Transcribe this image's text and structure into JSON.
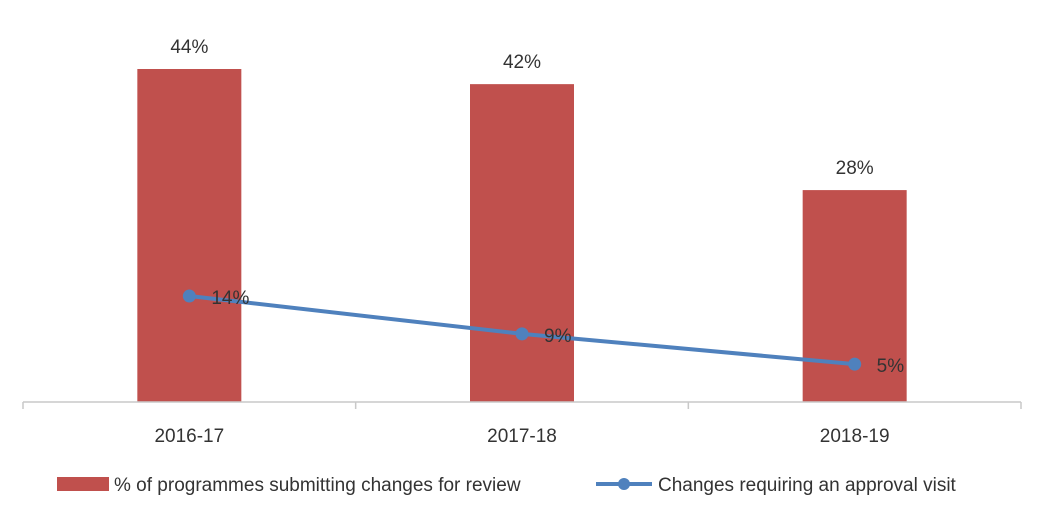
{
  "chart_data": {
    "type": "bar",
    "categories": [
      "2016-17",
      "2017-18",
      "2018-19"
    ],
    "series": [
      {
        "name": "% of programmes submitting changes for review",
        "type": "bar",
        "values": [
          44,
          42,
          28
        ],
        "labels": [
          "44%",
          "42%",
          "28%"
        ],
        "color": "#C0504D"
      },
      {
        "name": "Changes requiring an approval visit",
        "type": "line",
        "values": [
          14,
          9,
          5
        ],
        "labels": [
          "14%",
          "9%",
          "5%"
        ],
        "color": "#4F81BD"
      }
    ],
    "ylim": [
      0,
      44
    ],
    "grid": false,
    "legend_position": "bottom"
  }
}
